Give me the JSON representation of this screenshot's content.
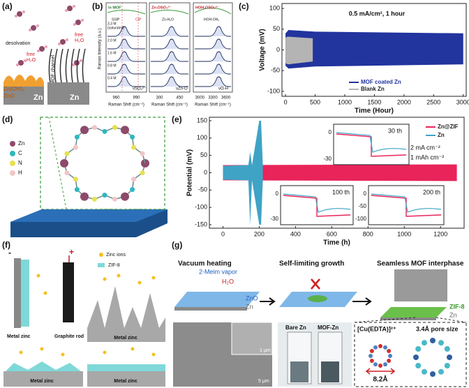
{
  "a": {
    "label": "(a)",
    "desolvation": "desolvation",
    "free_1": "free",
    "h2o_1": "H₂O",
    "mof_channel": "MOF channel",
    "free_2": "free",
    "h2o_2": "H₂O",
    "zn_oh": "Zn(OH)₂",
    "zno": "ZnO",
    "zn_left": "Zn",
    "zn_right": "Zn"
  },
  "b": {
    "label": "(b)",
    "y_label": "Raman Intensity (a.u.)",
    "x_labels": [
      "Raman Shift (cm⁻¹)",
      "Raman Shift (cm⁻¹)",
      "Raman Shift (cm⁻¹)"
    ],
    "columns": [
      "in MOF",
      "Zn-OSO₃²⁻",
      "HOH-OSO₃²⁻"
    ],
    "concentrations": [
      "3.3 M",
      "(saturated)",
      "2.0 M",
      "1.6 M",
      "0.8 M",
      "0.4 M"
    ],
    "peaks": [
      "SSIP",
      "CIP",
      "Zn-H₂O",
      "HOH-OH₂"
    ],
    "modes": [
      "νSO₄²⁻",
      "νZn-O",
      "νO-H"
    ],
    "ticks": [
      [
        960,
        990
      ],
      [
        300,
        450
      ],
      [
        3000,
        3300,
        3600
      ]
    ]
  },
  "c": {
    "label": "(c)",
    "chart": {
      "type": "area",
      "annotation": "0.5 mA/cm², 1 hour",
      "x_label": "Time (Hour)",
      "y_label": "Voltage (mV)",
      "xlim": [
        -60,
        3050
      ],
      "ylim": [
        -112,
        112
      ],
      "xticks": [
        0,
        500,
        1000,
        1500,
        2000,
        2500,
        3000
      ],
      "yticks": [
        -100,
        -50,
        0,
        50,
        100
      ],
      "series": [
        {
          "name": "MOF coated Zn",
          "color": "#22349e",
          "x": [
            0,
            50,
            500,
            3000
          ],
          "upper": [
            40,
            48,
            44,
            40
          ],
          "lower": [
            -38,
            -45,
            -40,
            -35
          ]
        },
        {
          "name": "Blank Zn",
          "color": "#b4b4b4",
          "x": [
            0,
            40,
            460
          ],
          "upper": [
            30,
            32,
            28
          ],
          "lower": [
            -32,
            -35,
            -28
          ]
        }
      ]
    }
  },
  "d": {
    "label": "(d)",
    "legend": [
      "Zn",
      "C",
      "N",
      "H"
    ]
  },
  "e": {
    "label": "(e)",
    "chart": {
      "type": "area",
      "x_label": "Time (h)",
      "y_label": "Potential (mV)",
      "xlim": [
        -75,
        1330
      ],
      "ylim": [
        -160,
        160
      ],
      "xticks": [
        0,
        200,
        400,
        600,
        800,
        1000,
        1200
      ],
      "yticks": [
        -150,
        -100,
        -50,
        0,
        50,
        100,
        150
      ],
      "conditions": [
        "2 mA cm⁻²",
        "1 mAh cm⁻²"
      ],
      "series": [
        {
          "name": "Zn@ZIF",
          "color": "#e8245a",
          "x": [
            0,
            1290
          ],
          "upper": [
            22,
            24
          ],
          "lower": [
            -22,
            -24
          ]
        },
        {
          "name": "Zn",
          "color": "#3fa3c6",
          "x": [
            0,
            140,
            150,
            160,
            200,
            210,
            220
          ],
          "upper": [
            20,
            22,
            60,
            22,
            150,
            150,
            20
          ],
          "lower": [
            -20,
            -22,
            -150,
            -22,
            -150,
            -150,
            -20
          ]
        }
      ],
      "insets": [
        {
          "label": "30 th",
          "yticks": [
            0,
            -30
          ]
        },
        {
          "label": "100 th",
          "yticks": [
            0,
            -30
          ]
        },
        {
          "label": "200 th",
          "yticks": [
            0,
            -50,
            -100
          ]
        }
      ]
    }
  },
  "f": {
    "label": "(f)",
    "minus": "-",
    "plus": "+",
    "zinc_ions": "Zinc ions",
    "zif8": "ZIF-8",
    "metal_zinc": [
      "Metal zinc",
      "Metal zinc",
      "Metal zinc",
      "Metal zinc"
    ],
    "graphite_rod": "Graphite rod"
  },
  "g": {
    "label": "(g)",
    "vacuum_heating": "Vacuum heating",
    "vapor": "2-Meim vapor",
    "h2o": "H₂O",
    "zno": "ZnO",
    "zn_1": "Zn",
    "growth": "Self-limiting growth",
    "interphase": "Seamless MOF interphase",
    "zif8": "ZIF-8",
    "zn_2": "Zn",
    "bare_zn": "Bare Zn",
    "mof_zn": "MOF-Zn",
    "complex": "[Cu(EDTA)]²⁺",
    "pore": "3.4Å pore size",
    "size": "8.2Å",
    "scale_1": "1 μm",
    "scale_2": "5 μm"
  }
}
